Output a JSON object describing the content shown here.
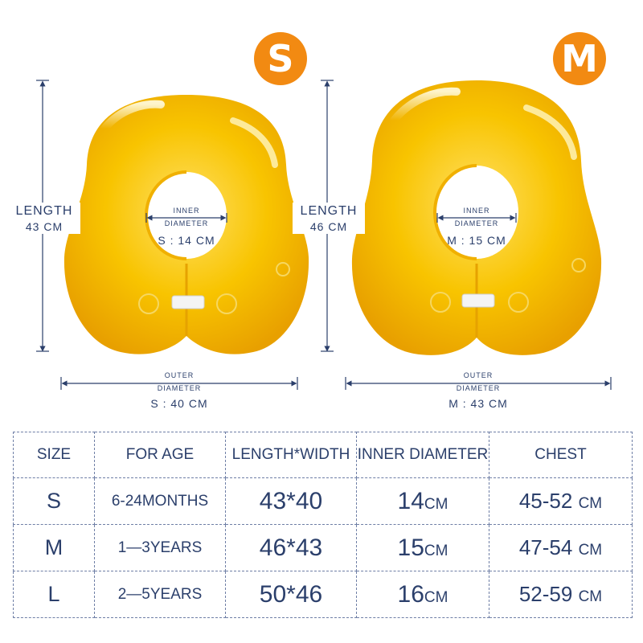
{
  "badges": {
    "left": "S",
    "right": "M"
  },
  "colors": {
    "badge": "#f28a12",
    "ring": "#f5c400",
    "dim_line": "#2b3f6b",
    "chest": "#d8141b"
  },
  "left": {
    "length_label": "LENGTH",
    "length_value": "43 CM",
    "inner_label_1": "INNER",
    "inner_label_2": "DIAMETER",
    "inner_value": "S : 14 CM",
    "outer_label_1": "OUTER",
    "outer_label_2": "DIAMETER",
    "outer_value": "S : 40 CM"
  },
  "right": {
    "length_label": "LENGTH",
    "length_value": "46 CM",
    "inner_label_1": "INNER",
    "inner_label_2": "DIAMETER",
    "inner_value": "M : 15 CM",
    "outer_label_1": "OUTER",
    "outer_label_2": "DIAMETER",
    "outer_value": "M : 43 CM"
  },
  "table": {
    "headers": [
      "SIZE",
      "FOR AGE",
      "LENGTH*WIDTH",
      "INNER DIAMETER",
      "CHEST"
    ],
    "rows": [
      {
        "size": "S",
        "age": "6-24MONTHS",
        "lw": "43*40",
        "inner": "14",
        "inner_unit": "CM",
        "chest": "45-52",
        "chest_unit": "CM"
      },
      {
        "size": "M",
        "age": "1—3YEARS",
        "lw": "46*43",
        "inner": "15",
        "inner_unit": "CM",
        "chest": "47-54",
        "chest_unit": "CM"
      },
      {
        "size": "L",
        "age": "2—5YEARS",
        "lw": "50*46",
        "inner": "16",
        "inner_unit": "CM",
        "chest": "52-59",
        "chest_unit": "CM"
      }
    ]
  }
}
